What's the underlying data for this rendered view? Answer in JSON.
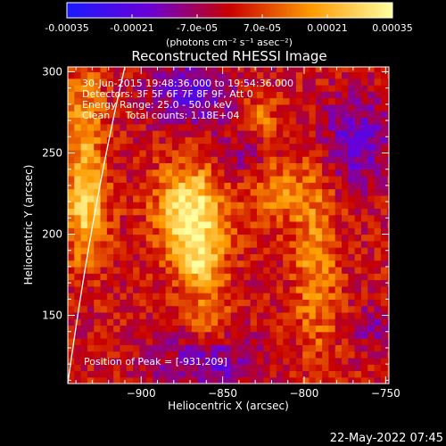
{
  "chart_data": {
    "type": "heatmap",
    "title": "Reconstructed RHESSI Image",
    "xlabel": "Heliocentric X (arcsec)",
    "ylabel": "Heliocentric Y (arcsec)",
    "xlim": [
      -945,
      -748
    ],
    "ylim": [
      108,
      303
    ],
    "x_ticks": [
      -900,
      -850,
      -800,
      -750
    ],
    "y_ticks": [
      150,
      200,
      250,
      300
    ],
    "colorbar": {
      "range": [
        -0.00035,
        0.00035
      ],
      "tick_values": [
        -0.00035,
        -0.00021,
        -7e-05,
        7e-05,
        0.00021,
        0.00035
      ],
      "tick_labels": [
        "-0.00035",
        "-0.00021",
        "-7.0e-05",
        "7.0e-05",
        "0.00021",
        "0.00035"
      ],
      "unit_label": "(photons cm⁻² s⁻¹ asec⁻²)",
      "colormap": [
        "#1a1aff",
        "#6a00d8",
        "#c80000",
        "#ff9a00",
        "#ffffa0"
      ]
    },
    "annotations": [
      "30-Jun-2015 19:48:36.000 to 19:54:36.000",
      "Detectors: 3F 5F 6F 7F 8F 9F, Att 0",
      "Energy Range: 25.0 - 50.0 keV",
      "Clean     Total counts: 1.18E+04"
    ],
    "peak_label": "Position of Peak = [-931,209]",
    "peak_position": [
      -931,
      209
    ],
    "sources": [
      {
        "x": -872,
        "y": 212,
        "amplitude": 0.00034,
        "sx": 14,
        "sy": 20
      },
      {
        "x": -865,
        "y": 180,
        "amplitude": 0.00022,
        "sx": 10,
        "sy": 14
      },
      {
        "x": -936,
        "y": 212,
        "amplitude": 0.00026,
        "sx": 9,
        "sy": 22
      },
      {
        "x": -937,
        "y": 268,
        "amplitude": 0.00018,
        "sx": 8,
        "sy": 25
      },
      {
        "x": -822,
        "y": 225,
        "amplitude": 0.00015,
        "sx": 18,
        "sy": 14
      },
      {
        "x": -795,
        "y": 178,
        "amplitude": 0.00016,
        "sx": 10,
        "sy": 40
      },
      {
        "x": -860,
        "y": 145,
        "amplitude": 0.00012,
        "sx": 10,
        "sy": 10
      },
      {
        "x": -830,
        "y": 270,
        "amplitude": 0.00012,
        "sx": 10,
        "sy": 10
      },
      {
        "x": -870,
        "y": 285,
        "amplitude": -0.0002,
        "sx": 18,
        "sy": 14
      },
      {
        "x": -770,
        "y": 255,
        "amplitude": -0.00018,
        "sx": 15,
        "sy": 20
      },
      {
        "x": -860,
        "y": 120,
        "amplitude": -0.00016,
        "sx": 22,
        "sy": 12
      },
      {
        "x": -840,
        "y": 240,
        "amplitude": -0.00012,
        "sx": 10,
        "sy": 14
      },
      {
        "x": -760,
        "y": 140,
        "amplitude": -0.0001,
        "sx": 10,
        "sy": 10
      }
    ],
    "limb_arc": [
      {
        "x": -945,
        "y": 108
      },
      {
        "x": -910,
        "y": 303
      }
    ],
    "pixel_resolution_arcsec": 4
  },
  "timestamp": "22-May-2022 07:45"
}
